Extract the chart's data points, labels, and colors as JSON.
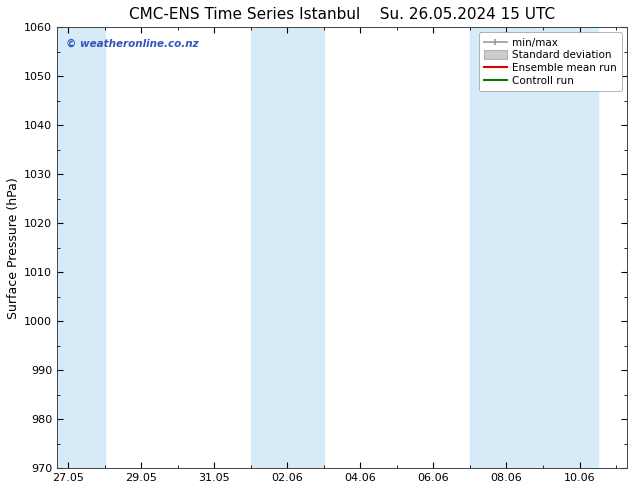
{
  "title_left": "CMC-ENS Time Series Istanbul",
  "title_right": "Su. 26.05.2024 15 UTC",
  "ylabel": "Surface Pressure (hPa)",
  "ylim": [
    970,
    1060
  ],
  "yticks": [
    970,
    980,
    990,
    1000,
    1010,
    1020,
    1030,
    1040,
    1050,
    1060
  ],
  "x_tick_labels": [
    "27.05",
    "29.05",
    "31.05",
    "02.06",
    "04.06",
    "06.06",
    "08.06",
    "10.06"
  ],
  "x_tick_positions": [
    0,
    2,
    4,
    6,
    8,
    10,
    12,
    14
  ],
  "x_min": -0.3,
  "x_max": 15.3,
  "shaded_bands": [
    {
      "x_start": -0.3,
      "x_end": 1.0,
      "color": "#d6eaf8"
    },
    {
      "x_start": 5.0,
      "x_end": 7.0,
      "color": "#d6eaf8"
    },
    {
      "x_start": 11.0,
      "x_end": 14.5,
      "color": "#d6eaf8"
    }
  ],
  "watermark_text": "© weatheronline.co.nz",
  "watermark_color": "#3355bb",
  "background_color": "#ffffff",
  "title_fontsize": 11,
  "axis_label_fontsize": 9,
  "tick_fontsize": 8,
  "legend_fontsize": 7.5
}
